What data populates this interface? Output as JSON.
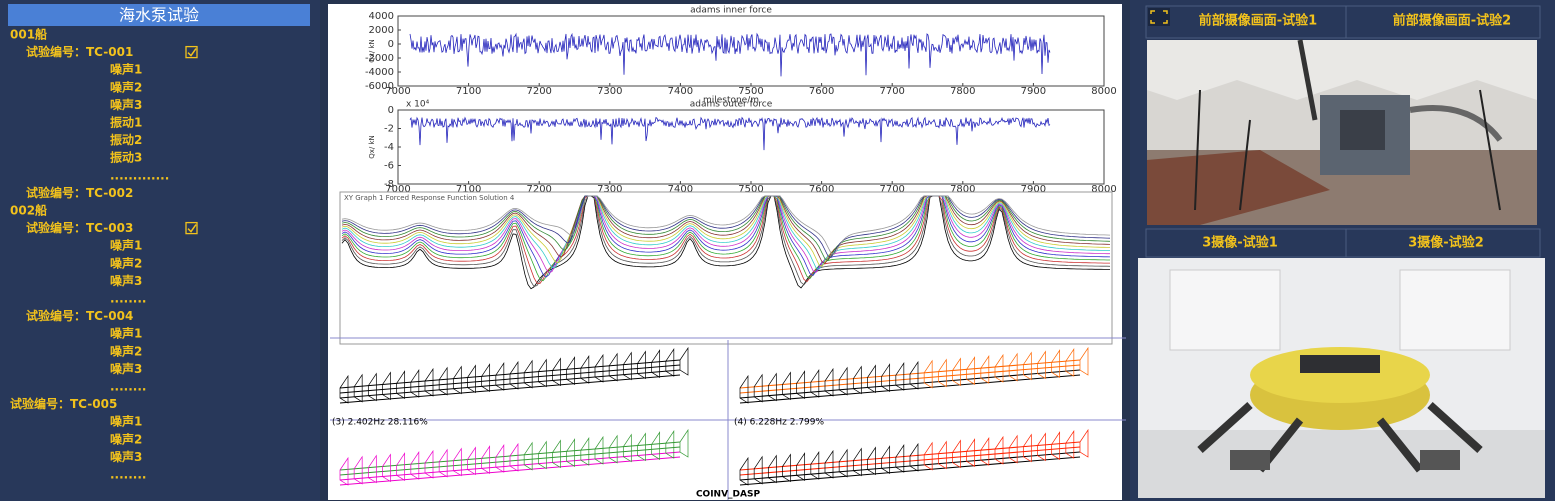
{
  "sidebar": {
    "title": "海水泵试验",
    "tree": [
      {
        "text": "001船",
        "level": 0
      },
      {
        "text": "试验编号：TC-001",
        "level": 1,
        "checked": true
      },
      {
        "text": "噪声1",
        "level": 2
      },
      {
        "text": "噪声2",
        "level": 2
      },
      {
        "text": "噪声3",
        "level": 2
      },
      {
        "text": "振动1",
        "level": 2
      },
      {
        "text": "振动2",
        "level": 2
      },
      {
        "text": "振动3",
        "level": 2
      },
      {
        "text": ".............",
        "level": 2
      },
      {
        "text": "试验编号：TC-002",
        "level": 1
      },
      {
        "text": "002船",
        "level": 0
      },
      {
        "text": "试验编号：TC-003",
        "level": 1,
        "checked": true
      },
      {
        "text": "噪声1",
        "level": 2
      },
      {
        "text": "噪声2",
        "level": 2
      },
      {
        "text": "噪声3",
        "level": 2
      },
      {
        "text": "........",
        "level": 2
      },
      {
        "text": "试验编号：TC-004",
        "level": 1
      },
      {
        "text": "噪声1",
        "level": 2
      },
      {
        "text": "噪声2",
        "level": 2
      },
      {
        "text": "噪声3",
        "level": 2
      },
      {
        "text": "........",
        "level": 2
      },
      {
        "text": "试验编号：TC-005",
        "level": 0
      },
      {
        "text": "噪声1",
        "level": 2
      },
      {
        "text": "噪声2",
        "level": 2
      },
      {
        "text": "噪声3",
        "level": 2
      },
      {
        "text": "........",
        "level": 2
      }
    ]
  },
  "plots": [
    {
      "title": "adams inner force",
      "xlabel": "milestone/m",
      "ylabel": "Qx/ kN",
      "xticks": [
        7000,
        7100,
        7200,
        7300,
        7400,
        7500,
        7600,
        7700,
        7800,
        7900,
        8000
      ],
      "yticks": [
        4000,
        2000,
        0,
        -2000,
        -4000,
        -6000
      ]
    },
    {
      "title": "adams outer force",
      "multiplier": "x 10⁴",
      "xlabel": "milestone/m",
      "ylabel": "Qx/ kN",
      "xticks": [
        7000,
        7100,
        7200,
        7300,
        7400,
        7500,
        7600,
        7700,
        7800,
        7900,
        8000
      ],
      "yticks": [
        0,
        -2,
        -4,
        -6,
        -8
      ]
    }
  ],
  "frf": {
    "title": "XY Graph 1 Forced Response Function Solution 4"
  },
  "modes": {
    "labels": [
      "(3) 2.402Hz 28.116%",
      "(4) 6.228Hz 2.799%"
    ],
    "footer": "COINV_DASP"
  },
  "cameras": {
    "top_tabs": [
      "前部摄像画面-试验1",
      "前部摄像画面-试验2"
    ],
    "bottom_tabs": [
      "3摄像-试验1",
      "3摄像-试验2"
    ]
  }
}
